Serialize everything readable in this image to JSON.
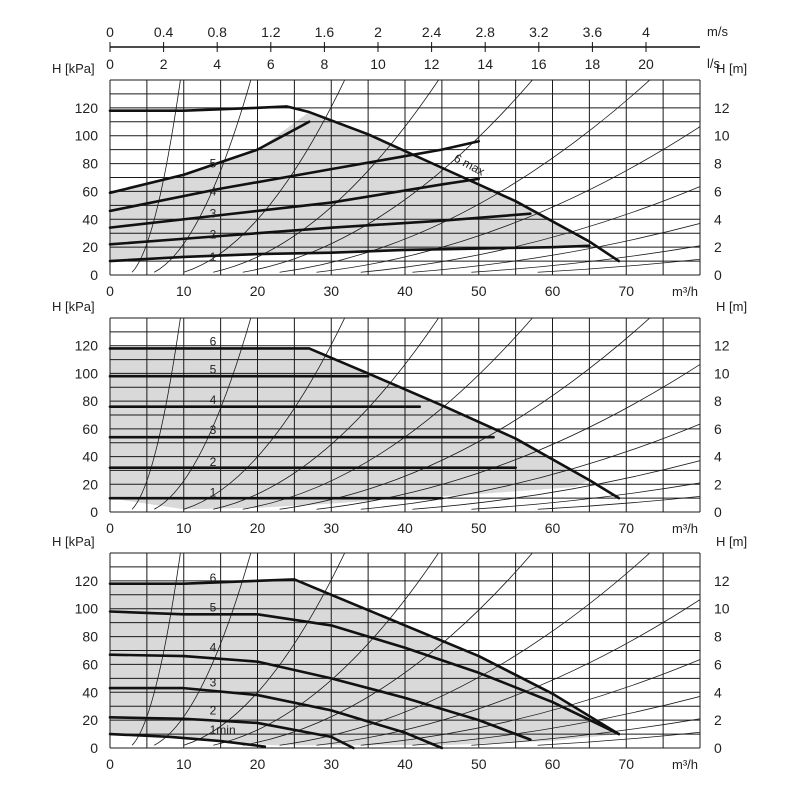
{
  "top_axis": {
    "ms_label": "m/s",
    "ls_label": "l/s",
    "ms_ticks": [
      "0",
      "0.4",
      "0.8",
      "1.2",
      "1.6",
      "2",
      "2.4",
      "2.8",
      "3.2",
      "3.6",
      "4"
    ],
    "ls_ticks": [
      "0",
      "2",
      "4",
      "6",
      "8",
      "10",
      "12",
      "14",
      "16",
      "18",
      "20"
    ]
  },
  "colors": {
    "curve": "#111111",
    "fill": "#d9d9d9",
    "grid": "#1a1a1a"
  },
  "chart_data": [
    {
      "type": "line",
      "title": "",
      "xlabel": "m³/h",
      "ylabel_left": "H [kPa]",
      "ylabel_right": "H [m]",
      "xlim": [
        0,
        80
      ],
      "ylim": [
        0,
        140
      ],
      "x_ticks": [
        "0",
        "10",
        "20",
        "30",
        "40",
        "50",
        "60",
        "70"
      ],
      "y_ticks_left": [
        "0",
        "20",
        "40",
        "60",
        "80",
        "100",
        "120"
      ],
      "y_ticks_right": [
        "0",
        "2",
        "4",
        "6",
        "8",
        "10",
        "12"
      ],
      "series": [
        {
          "name": "1",
          "label_at": [
            7,
            13
          ],
          "points": [
            [
              0,
              10
            ],
            [
              10,
              13
            ],
            [
              20,
              15
            ],
            [
              30,
              16
            ],
            [
              40,
              18
            ],
            [
              50,
              19
            ],
            [
              60,
              20
            ],
            [
              65,
              21
            ]
          ]
        },
        {
          "name": "2",
          "label_at": [
            7,
            29
          ],
          "points": [
            [
              0,
              22
            ],
            [
              15,
              28
            ],
            [
              30,
              34
            ],
            [
              45,
              39
            ],
            [
              57,
              44
            ]
          ]
        },
        {
          "name": "3",
          "label_at": [
            7,
            44
          ],
          "points": [
            [
              0,
              34
            ],
            [
              15,
              43
            ],
            [
              30,
              52
            ],
            [
              45,
              65
            ],
            [
              50,
              69
            ]
          ]
        },
        {
          "name": "4",
          "label_at": [
            7,
            60
          ],
          "points": [
            [
              0,
              46
            ],
            [
              15,
              62
            ],
            [
              30,
              76
            ],
            [
              45,
              90
            ],
            [
              50,
              96
            ]
          ]
        },
        {
          "name": "5",
          "label_at": [
            7,
            80
          ],
          "points": [
            [
              0,
              59
            ],
            [
              10,
              72
            ],
            [
              20,
              90
            ],
            [
              27,
              110
            ]
          ]
        },
        {
          "name": "6 max",
          "label_at": [
            40,
            85
          ],
          "label_rotate": 28,
          "points": [
            [
              0,
              118
            ],
            [
              10,
              118
            ],
            [
              20,
              120
            ],
            [
              24,
              121
            ],
            [
              27,
              117
            ],
            [
              35,
              101
            ],
            [
              45,
              77
            ],
            [
              55,
              53
            ],
            [
              65,
              24
            ],
            [
              69,
              10
            ]
          ]
        }
      ],
      "operating_area": [
        [
          0,
          10
        ],
        [
          0,
          59
        ],
        [
          10,
          72
        ],
        [
          20,
          90
        ],
        [
          27,
          117
        ],
        [
          35,
          101
        ],
        [
          45,
          77
        ],
        [
          55,
          53
        ],
        [
          65,
          22
        ],
        [
          62,
          21
        ],
        [
          45,
          18
        ],
        [
          30,
          16
        ],
        [
          20,
          15
        ],
        [
          10,
          13
        ]
      ]
    },
    {
      "type": "line",
      "title": "",
      "xlabel": "m³/h",
      "ylabel_left": "H [kPa]",
      "ylabel_right": "H [m]",
      "xlim": [
        0,
        80
      ],
      "ylim": [
        0,
        140
      ],
      "x_ticks": [
        "0",
        "10",
        "20",
        "30",
        "40",
        "50",
        "60",
        "70"
      ],
      "y_ticks_left": [
        "0",
        "20",
        "40",
        "60",
        "80",
        "100",
        "120"
      ],
      "y_ticks_right": [
        "0",
        "2",
        "4",
        "6",
        "8",
        "10",
        "12"
      ],
      "series": [
        {
          "name": "1",
          "label_at": [
            7,
            14
          ],
          "points": [
            [
              0,
              10
            ],
            [
              45,
              10
            ]
          ]
        },
        {
          "name": "2",
          "label_at": [
            7,
            36
          ],
          "points": [
            [
              0,
              32
            ],
            [
              55,
              32
            ]
          ]
        },
        {
          "name": "3",
          "label_at": [
            7,
            59
          ],
          "points": [
            [
              0,
              54
            ],
            [
              52,
              54
            ]
          ]
        },
        {
          "name": "4",
          "label_at": [
            7,
            81
          ],
          "points": [
            [
              0,
              76
            ],
            [
              42,
              76
            ]
          ]
        },
        {
          "name": "5",
          "label_at": [
            7,
            103
          ],
          "points": [
            [
              0,
              98
            ],
            [
              35,
              98
            ]
          ]
        },
        {
          "name": "6",
          "label_at": [
            7,
            123
          ],
          "points": [
            [
              0,
              118
            ],
            [
              27,
              118
            ],
            [
              35,
              100
            ],
            [
              45,
              77
            ],
            [
              55,
              53
            ],
            [
              65,
              23
            ],
            [
              69,
              10
            ]
          ]
        }
      ],
      "operating_area": [
        [
          0,
          10
        ],
        [
          0,
          118
        ],
        [
          27,
          118
        ],
        [
          35,
          100
        ],
        [
          45,
          77
        ],
        [
          55,
          53
        ],
        [
          65,
          23
        ],
        [
          63,
          18
        ],
        [
          50,
          13
        ],
        [
          40,
          10
        ],
        [
          30,
          6
        ],
        [
          20,
          3
        ],
        [
          10,
          2
        ]
      ]
    },
    {
      "type": "line",
      "title": "",
      "xlabel": "m³/h",
      "ylabel_left": "H [kPa]",
      "ylabel_right": "H [m]",
      "xlim": [
        0,
        80
      ],
      "ylim": [
        0,
        140
      ],
      "x_ticks": [
        "0",
        "10",
        "20",
        "30",
        "40",
        "50",
        "60",
        "70"
      ],
      "y_ticks_left": [
        "0",
        "20",
        "40",
        "60",
        "80",
        "100",
        "120"
      ],
      "y_ticks_right": [
        "0",
        "2",
        "4",
        "6",
        "8",
        "10",
        "12"
      ],
      "series": [
        {
          "name": "1min",
          "label_at": [
            7,
            13
          ],
          "points": [
            [
              0,
              10
            ],
            [
              8,
              8
            ],
            [
              15,
              5
            ],
            [
              21,
              1
            ]
          ]
        },
        {
          "name": "2",
          "label_at": [
            7,
            27
          ],
          "points": [
            [
              0,
              22
            ],
            [
              10,
              21
            ],
            [
              20,
              18
            ],
            [
              30,
              8
            ],
            [
              33,
              0
            ]
          ]
        },
        {
          "name": "3",
          "label_at": [
            7,
            47
          ],
          "points": [
            [
              0,
              43
            ],
            [
              10,
              43
            ],
            [
              20,
              38
            ],
            [
              30,
              27
            ],
            [
              40,
              11
            ],
            [
              45,
              0
            ]
          ]
        },
        {
          "name": "4",
          "label_at": [
            7,
            72
          ],
          "points": [
            [
              0,
              67
            ],
            [
              10,
              66
            ],
            [
              20,
              62
            ],
            [
              30,
              50
            ],
            [
              40,
              36
            ],
            [
              50,
              20
            ],
            [
              57,
              6
            ]
          ]
        },
        {
          "name": "5",
          "label_at": [
            7,
            101
          ],
          "points": [
            [
              0,
              98
            ],
            [
              10,
              96
            ],
            [
              20,
              96
            ],
            [
              30,
              88
            ],
            [
              40,
              72
            ],
            [
              50,
              54
            ],
            [
              60,
              33
            ],
            [
              69,
              10
            ]
          ]
        },
        {
          "name": "6",
          "label_at": [
            7,
            122
          ],
          "points": [
            [
              0,
              118
            ],
            [
              10,
              118
            ],
            [
              20,
              120
            ],
            [
              25,
              121
            ],
            [
              30,
              110
            ],
            [
              40,
              88
            ],
            [
              50,
              66
            ],
            [
              60,
              39
            ],
            [
              69,
              10
            ]
          ]
        }
      ],
      "operating_area": [
        [
          0,
          10
        ],
        [
          0,
          118
        ],
        [
          10,
          118
        ],
        [
          20,
          120
        ],
        [
          25,
          121
        ],
        [
          30,
          110
        ],
        [
          40,
          88
        ],
        [
          50,
          66
        ],
        [
          60,
          39
        ],
        [
          69,
          10
        ],
        [
          60,
          5
        ],
        [
          45,
          2
        ],
        [
          30,
          2
        ],
        [
          22,
          2
        ],
        [
          15,
          5
        ],
        [
          8,
          8
        ]
      ]
    }
  ]
}
